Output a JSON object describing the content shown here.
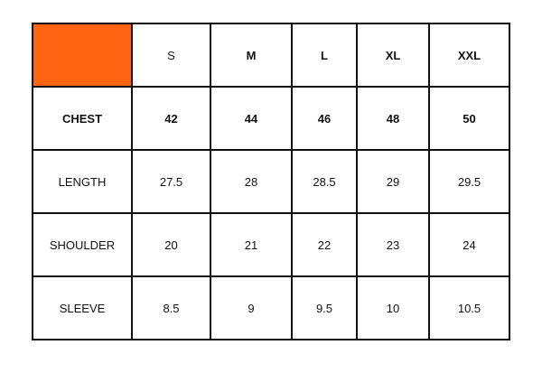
{
  "corner_color": "#FF6410",
  "header": [
    "S",
    "M",
    "L",
    "XL",
    "XXL"
  ],
  "rows": [
    {
      "label": "CHEST",
      "values": [
        "42",
        "44",
        "46",
        "48",
        "50"
      ],
      "bold": true
    },
    {
      "label": "LENGTH",
      "values": [
        "27.5",
        "28",
        "28.5",
        "29",
        "29.5"
      ],
      "bold": false
    },
    {
      "label": "SHOULDER",
      "values": [
        "20",
        "21",
        "22",
        "23",
        "24"
      ],
      "bold": false
    },
    {
      "label": "SLEEVE",
      "values": [
        "8.5",
        "9",
        "9.5",
        "10",
        "10.5"
      ],
      "bold": false
    }
  ]
}
